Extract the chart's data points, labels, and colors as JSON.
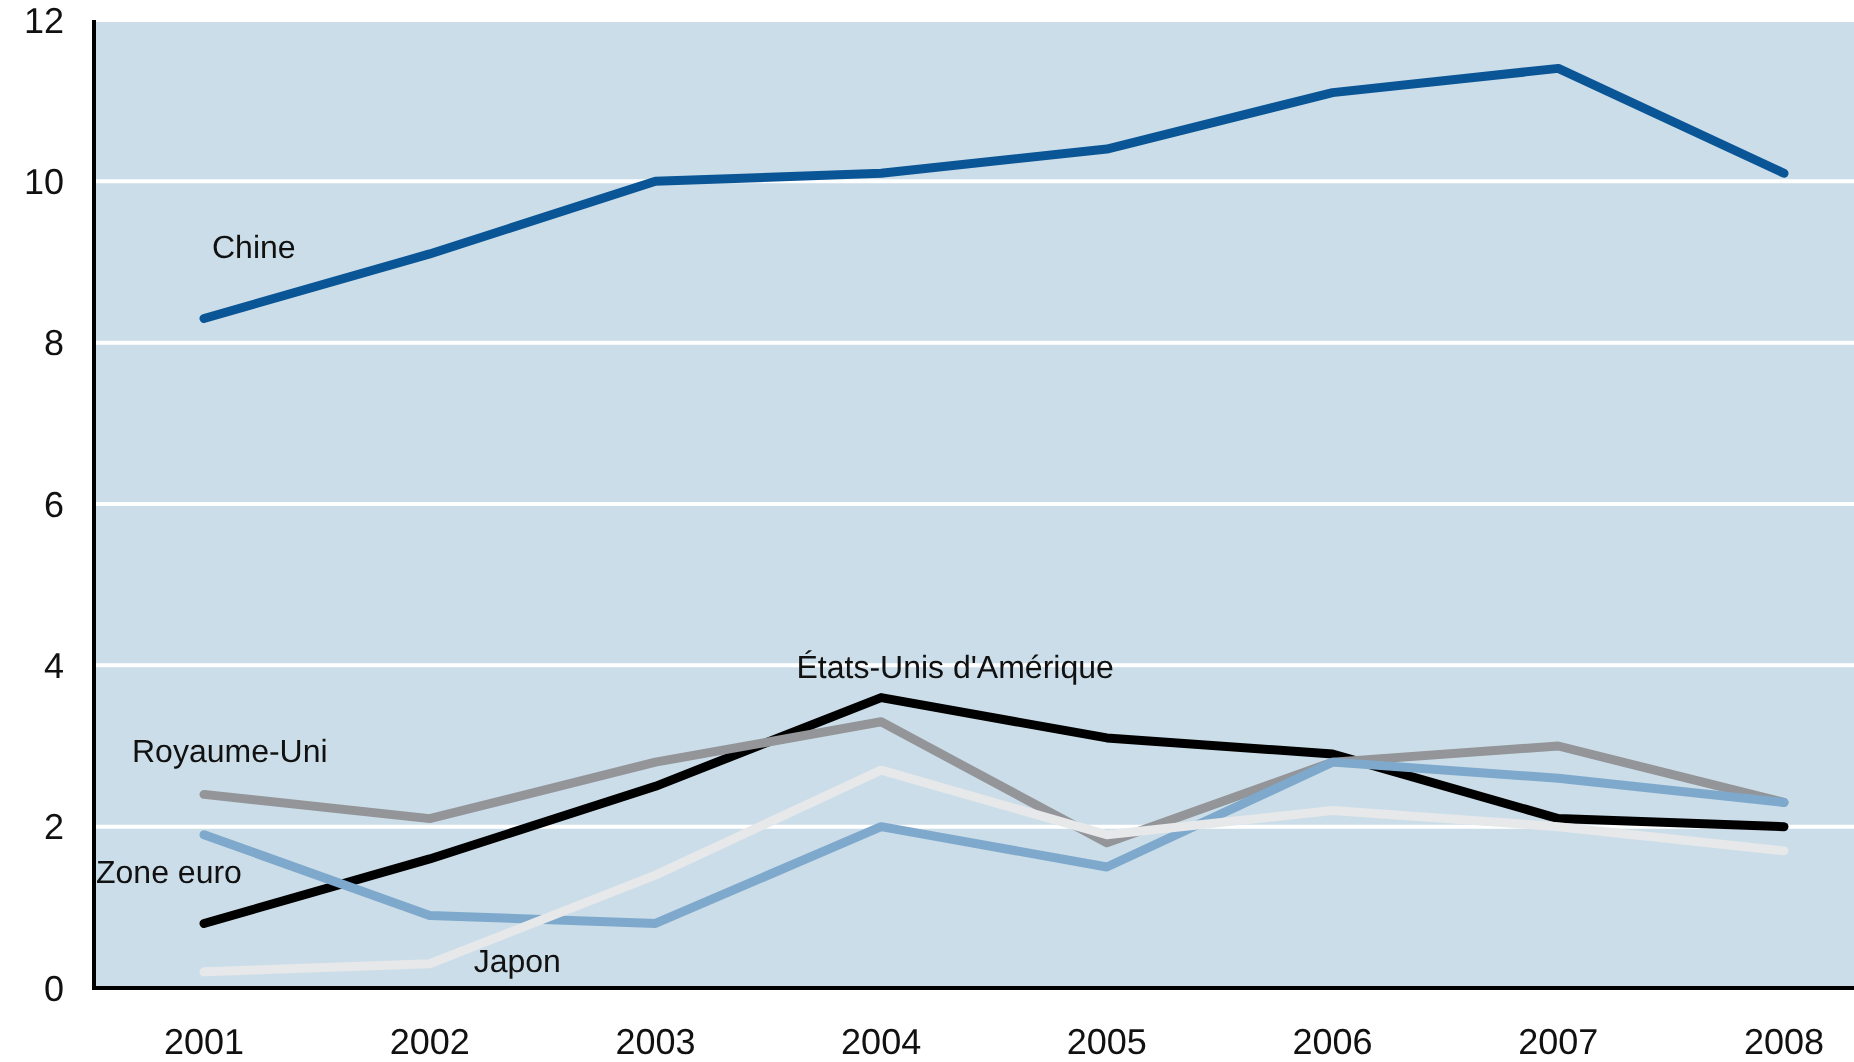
{
  "chart_data": {
    "type": "line",
    "categories": [
      "2001",
      "2002",
      "2003",
      "2004",
      "2005",
      "2006",
      "2007",
      "2008"
    ],
    "series": [
      {
        "name": "Chine",
        "color": "#0a5596",
        "values": [
          8.3,
          9.1,
          10.0,
          10.1,
          10.4,
          11.1,
          11.4,
          10.1
        ]
      },
      {
        "name": "États-Unis d'Amérique",
        "color": "#000000",
        "values": [
          0.8,
          1.6,
          2.5,
          3.6,
          3.1,
          2.9,
          2.1,
          2.0
        ]
      },
      {
        "name": "Royaume-Uni",
        "color": "#939598",
        "values": [
          2.4,
          2.1,
          2.8,
          3.3,
          1.8,
          2.8,
          3.0,
          2.3
        ]
      },
      {
        "name": "Zone euro",
        "color": "#7ea9cc",
        "values": [
          1.9,
          0.9,
          0.8,
          2.0,
          1.5,
          2.8,
          2.6,
          2.3
        ]
      },
      {
        "name": "Japon",
        "color": "#e6e8ea",
        "values": [
          0.2,
          0.3,
          1.4,
          2.7,
          1.9,
          2.2,
          2.0,
          1.7
        ]
      }
    ],
    "ylim": [
      0,
      12
    ],
    "yticks": [
      0,
      2,
      4,
      6,
      8,
      10,
      12
    ],
    "grid": "y",
    "marker": "none",
    "line_style": "solid"
  }
}
